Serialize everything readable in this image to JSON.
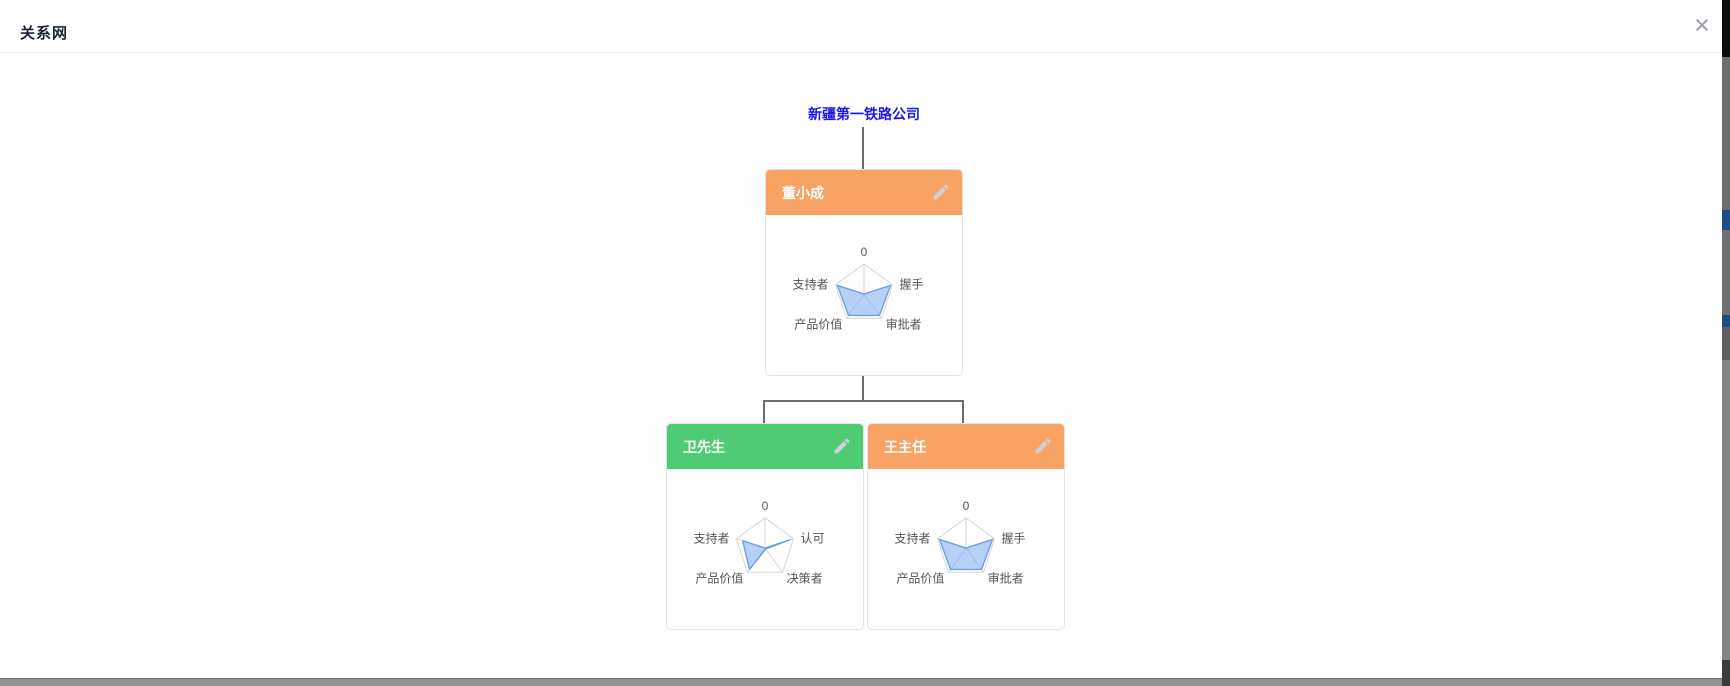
{
  "modal": {
    "title": "关系网",
    "close_glyph": "×"
  },
  "tree": {
    "company_name": "新疆第一铁路公司"
  },
  "colors": {
    "company_link": "#1c17ee",
    "orange_header": "#f8a263",
    "green_header": "#4ecb73",
    "connector": "#6b6b6b",
    "radar_fill": "rgba(124,169,238,0.55)",
    "radar_stroke": "#6d9ee8",
    "radar_grid": "#d6d6d6",
    "radar_label": "#555555"
  },
  "cards": [
    {
      "name": "董小成",
      "header_color": "#f8a263",
      "radar": {
        "type": "radar",
        "axes": [
          "0",
          "握手",
          "审批者",
          "产品价值",
          "支持者"
        ],
        "values": [
          0,
          0.93,
          0.88,
          0.88,
          0.93
        ]
      }
    },
    {
      "name": "卫先生",
      "header_color": "#4ecb73",
      "radar": {
        "type": "radar",
        "axes": [
          "0",
          "认可",
          "决策者",
          "产品价值",
          "支持者"
        ],
        "values": [
          0,
          0.87,
          0.04,
          0.88,
          0.78
        ]
      }
    },
    {
      "name": "王主任",
      "header_color": "#f8a263",
      "radar": {
        "type": "radar",
        "axes": [
          "0",
          "握手",
          "审批者",
          "产品价值",
          "支持者"
        ],
        "values": [
          0,
          0.93,
          0.88,
          0.88,
          0.93
        ]
      }
    }
  ]
}
